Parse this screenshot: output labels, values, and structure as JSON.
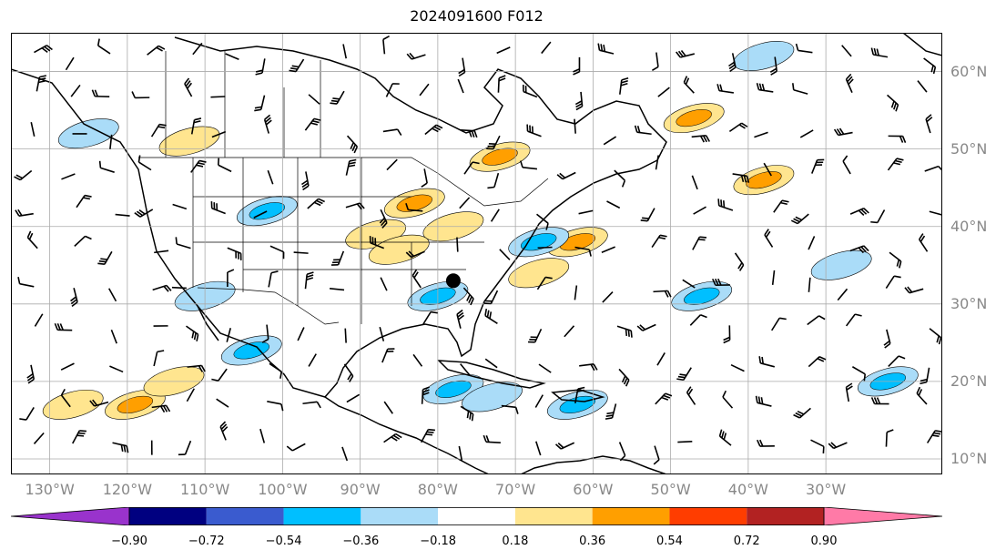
{
  "title": "2024091600 F012",
  "lon_labels": [
    "130°W",
    "120°W",
    "110°W",
    "100°W",
    "90°W",
    "80°W",
    "70°W",
    "60°W",
    "50°W",
    "40°W",
    "30°W"
  ],
  "lat_labels": [
    "60°N",
    "50°N",
    "40°N",
    "30°N",
    "20°N",
    "10°N"
  ],
  "colorbar": {
    "ticks": [
      "−0.90",
      "−0.72",
      "−0.54",
      "−0.36",
      "−0.18",
      "0.18",
      "0.36",
      "0.54",
      "0.72",
      "0.90"
    ],
    "colors": [
      "#9933cc",
      "#000080",
      "#3a5bcf",
      "#00bfff",
      "#aadcf8",
      "#ffffff",
      "#ffe58f",
      "#ff9f00",
      "#ff3d00",
      "#b22222",
      "#ff7aa7"
    ],
    "extend": "both"
  },
  "map": {
    "extent": {
      "lon_min": -135,
      "lon_max": -15,
      "lat_min": 8,
      "lat_max": 65
    },
    "storm_marker": {
      "lon": -78,
      "lat": 33
    },
    "positive_contours": [
      {
        "lon": -72,
        "lat": 49,
        "level": 0.36
      },
      {
        "lon": -83,
        "lat": 43,
        "level": 0.36
      },
      {
        "lon": -78,
        "lat": 40,
        "level": 0.18
      },
      {
        "lon": -47,
        "lat": 54,
        "level": 0.36
      },
      {
        "lon": -62,
        "lat": 38,
        "level": 0.36
      },
      {
        "lon": -67,
        "lat": 34,
        "level": 0.18
      },
      {
        "lon": -119,
        "lat": 17,
        "level": 0.36
      },
      {
        "lon": -127,
        "lat": 17,
        "level": 0.18
      },
      {
        "lon": -88,
        "lat": 39,
        "level": 0.18
      },
      {
        "lon": -85,
        "lat": 37,
        "level": 0.18
      },
      {
        "lon": -38,
        "lat": 46,
        "level": 0.36
      },
      {
        "lon": -112,
        "lat": 51,
        "level": 0.18
      },
      {
        "lon": -114,
        "lat": 20,
        "level": 0.18
      }
    ],
    "negative_contours": [
      {
        "lon": -102,
        "lat": 42,
        "level": -0.36
      },
      {
        "lon": -80,
        "lat": 31,
        "level": -0.36
      },
      {
        "lon": -67,
        "lat": 38,
        "level": -0.36
      },
      {
        "lon": -104,
        "lat": 24,
        "level": -0.36
      },
      {
        "lon": -78,
        "lat": 19,
        "level": -0.36
      },
      {
        "lon": -62,
        "lat": 17,
        "level": -0.36
      },
      {
        "lon": -73,
        "lat": 18,
        "level": -0.18
      },
      {
        "lon": -22,
        "lat": 20,
        "level": -0.36
      },
      {
        "lon": -46,
        "lat": 31,
        "level": -0.36
      },
      {
        "lon": -38,
        "lat": 62,
        "level": -0.18
      },
      {
        "lon": -125,
        "lat": 52,
        "level": -0.18
      },
      {
        "lon": -110,
        "lat": 31,
        "level": -0.18
      },
      {
        "lon": -28,
        "lat": 35,
        "level": -0.18
      }
    ]
  }
}
